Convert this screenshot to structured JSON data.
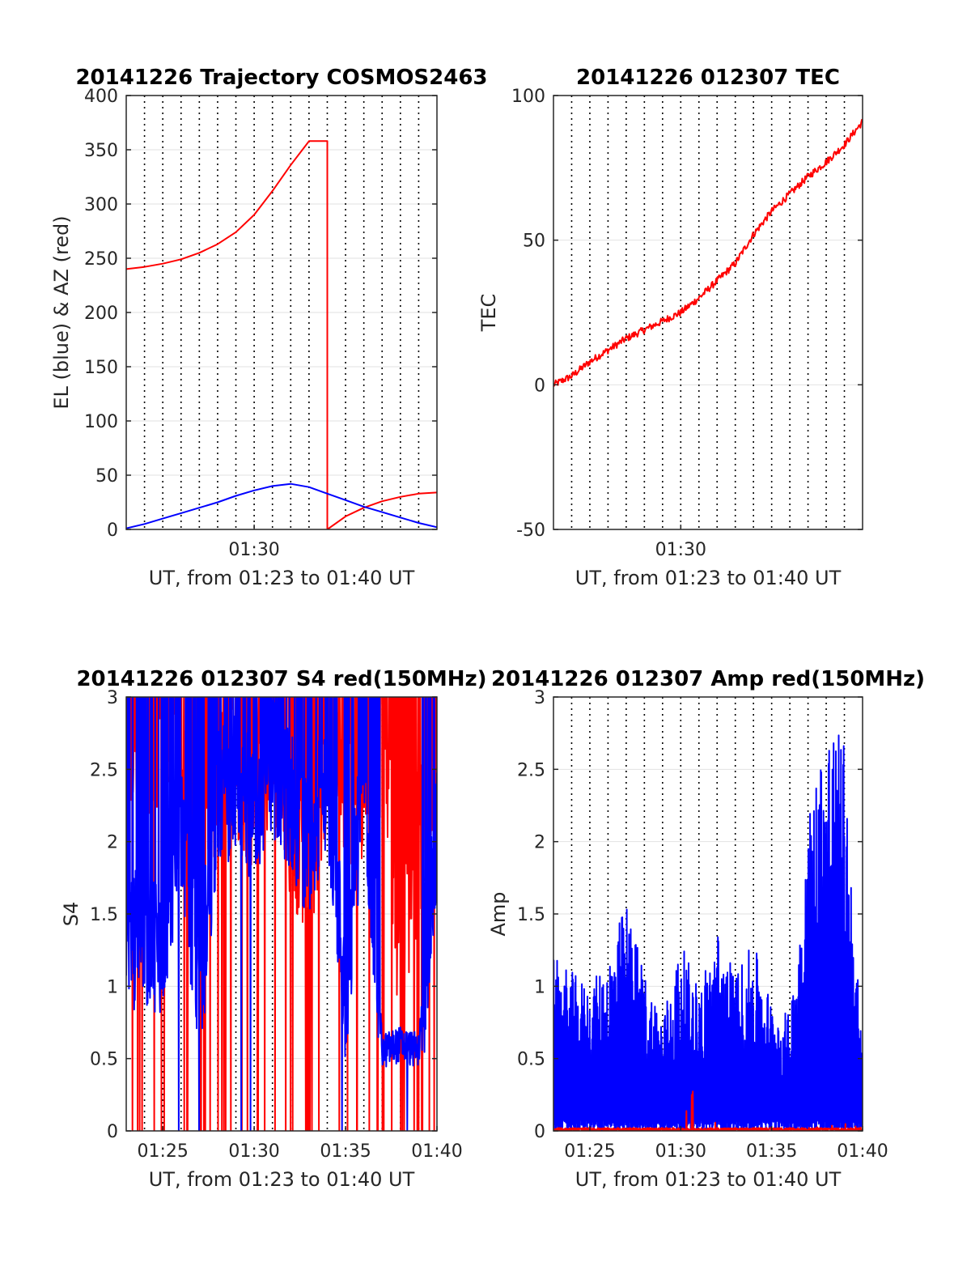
{
  "figure": {
    "background": "#ffffff",
    "grid_color": "#e2e2e2",
    "axis_color": "#262626"
  },
  "chart_data": [
    {
      "type": "line",
      "title": "20141226 Trajectory COSMOS2463",
      "xlabel": "UT, from 01:23 to 01:40 UT",
      "ylabel": "EL (blue) & AZ (red)",
      "xlim": [
        "01:23",
        "01:40"
      ],
      "ylim": [
        0,
        400
      ],
      "yticks": [
        0,
        50,
        100,
        150,
        200,
        250,
        300,
        350,
        400
      ],
      "xticks": [
        "01:30"
      ],
      "grid": true,
      "series": [
        {
          "color": "#ff0000",
          "x": [
            "01:23",
            "01:24",
            "01:25",
            "01:26",
            "01:27",
            "01:28",
            "01:29",
            "01:30",
            "01:31",
            "01:32",
            "01:33",
            "01:34",
            "01:34",
            "01:35",
            "01:36",
            "01:37",
            "01:38",
            "01:39",
            "01:40"
          ],
          "y": [
            240,
            242,
            245,
            249,
            255,
            263,
            274,
            290,
            312,
            336,
            358,
            358,
            0,
            12,
            20,
            26,
            30,
            33,
            34
          ]
        },
        {
          "color": "#0000ff",
          "x": [
            "01:23",
            "01:24",
            "01:25",
            "01:26",
            "01:27",
            "01:28",
            "01:29",
            "01:30",
            "01:31",
            "01:32",
            "01:33",
            "01:34",
            "01:35",
            "01:36",
            "01:37",
            "01:38",
            "01:39",
            "01:40"
          ],
          "y": [
            1,
            5,
            10,
            15,
            20,
            25,
            31,
            36,
            40,
            42,
            39,
            33,
            27,
            21,
            16,
            11,
            6,
            2
          ]
        }
      ]
    },
    {
      "type": "line",
      "title": "20141226 012307 TEC",
      "xlabel": "UT, from 01:23 to 01:40 UT",
      "ylabel": "TEC",
      "xlim": [
        "01:23",
        "01:40"
      ],
      "ylim": [
        -50,
        100
      ],
      "yticks": [
        -50,
        0,
        50,
        100
      ],
      "xticks": [
        "01:30"
      ],
      "grid": true,
      "series": [
        {
          "color": "#ff0000",
          "x": [
            "01:23",
            "01:24",
            "01:25",
            "01:26",
            "01:27",
            "01:28",
            "01:29",
            "01:30",
            "01:31",
            "01:32",
            "01:33",
            "01:34",
            "01:35",
            "01:36",
            "01:37",
            "01:38",
            "01:39",
            "01:40"
          ],
          "y": [
            0,
            3,
            8,
            12,
            16,
            19,
            22,
            25,
            30,
            36,
            42,
            52,
            60,
            66,
            72,
            77,
            83,
            91
          ]
        }
      ]
    },
    {
      "type": "line",
      "title": "20141226 012307 S4 red(150MHz)",
      "xlabel": "UT, from 01:23 to 01:40 UT",
      "ylabel": "S4",
      "xlim": [
        "01:23",
        "01:40"
      ],
      "ylim": [
        0,
        3
      ],
      "yticks": [
        0,
        0.5,
        1,
        1.5,
        2,
        2.5,
        3
      ],
      "xticks": [
        "01:25",
        "01:30",
        "01:35",
        "01:40"
      ],
      "grid": true,
      "series": [
        {
          "color": "#ff0000",
          "x": [
            "01:23",
            "01:24",
            "01:25",
            "01:26",
            "01:27",
            "01:28",
            "01:29",
            "01:30",
            "01:31",
            "01:32",
            "01:33",
            "01:34",
            "01:35",
            "01:36",
            "01:37",
            "01:38",
            "01:39",
            "01:40"
          ],
          "y": [
            2.8,
            2.5,
            2.6,
            2.4,
            2.2,
            2.5,
            2.6,
            2.3,
            2.7,
            2.2,
            1.9,
            2.6,
            2.3,
            2.5,
            2.7,
            1.2,
            2.0,
            2.6
          ]
        },
        {
          "color": "#0000ff",
          "x": [
            "01:23",
            "01:24",
            "01:25",
            "01:26",
            "01:27",
            "01:28",
            "01:29",
            "01:30",
            "01:31",
            "01:32",
            "01:33",
            "01:34",
            "01:35",
            "01:36",
            "01:37",
            "01:38",
            "01:39",
            "01:40"
          ],
          "y": [
            1.3,
            1.35,
            1.3,
            2.2,
            0.9,
            2.3,
            2.4,
            2.2,
            2.5,
            2.3,
            1.9,
            2.5,
            0.9,
            2.6,
            0.55,
            0.6,
            0.55,
            2.0
          ]
        }
      ]
    },
    {
      "type": "line",
      "title": "20141226 012307 Amp red(150MHz)",
      "xlabel": "UT, from 01:23 to 01:40 UT",
      "ylabel": "Amp",
      "xlim": [
        "01:23",
        "01:40"
      ],
      "ylim": [
        0,
        3
      ],
      "yticks": [
        0,
        0.5,
        1,
        1.5,
        2,
        2.5,
        3
      ],
      "xticks": [
        "01:25",
        "01:30",
        "01:35",
        "01:40"
      ],
      "grid": true,
      "series": [
        {
          "color": "#0000ff",
          "x": [
            "01:23",
            "01:24",
            "01:25",
            "01:26",
            "01:27",
            "01:28",
            "01:29",
            "01:30",
            "01:31",
            "01:32",
            "01:33",
            "01:34",
            "01:35",
            "01:36",
            "01:37",
            "01:38",
            "01:39",
            "01:40"
          ],
          "y": [
            1.2,
            1.1,
            1.0,
            1.2,
            1.6,
            1.1,
            0.8,
            1.3,
            1.0,
            1.4,
            1.1,
            1.3,
            0.9,
            0.8,
            2.2,
            2.9,
            2.7,
            0.5
          ]
        },
        {
          "color": "#ff0000",
          "x": [
            "01:23",
            "01:24",
            "01:25",
            "01:26",
            "01:27",
            "01:28",
            "01:29",
            "01:30",
            "01:31",
            "01:32",
            "01:33",
            "01:34",
            "01:35",
            "01:36",
            "01:37",
            "01:38",
            "01:39",
            "01:40"
          ],
          "y": [
            0.02,
            0.02,
            0.02,
            0.02,
            0.02,
            0.02,
            0.02,
            0.02,
            0.4,
            0.02,
            0.02,
            0.02,
            0.02,
            0.02,
            0.02,
            0.03,
            0.05,
            0.02
          ]
        }
      ]
    }
  ]
}
